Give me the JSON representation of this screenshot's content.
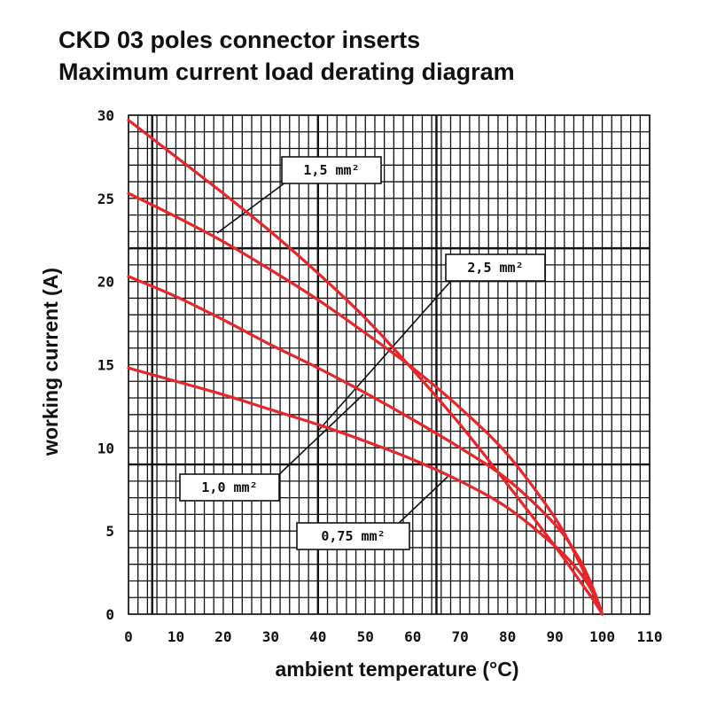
{
  "title_line1": "CKD 03 poles connector inserts",
  "title_line2": "Maximum current load derating diagram",
  "chart_data": {
    "type": "line",
    "title": "CKD 03 poles connector inserts Maximum current load derating diagram",
    "xlabel": "ambient temperature (°C)",
    "ylabel": "working current (A)",
    "xlim": [
      0,
      110
    ],
    "ylim": [
      0,
      30
    ],
    "xticks": [
      "0",
      "10",
      "20",
      "30",
      "40",
      "50",
      "60",
      "70",
      "80",
      "90",
      "100",
      "110"
    ],
    "yticks": [
      "0",
      "5",
      "10",
      "15",
      "20",
      "25",
      "30"
    ],
    "grid": true,
    "line_color": "#e8262a",
    "series": [
      {
        "name": "2,5 mm²",
        "x": [
          0,
          10,
          20,
          30,
          40,
          50,
          60,
          70,
          80,
          90,
          95,
          98,
          100
        ],
        "y": [
          29.7,
          27.5,
          25.3,
          23.0,
          20.5,
          17.8,
          14.7,
          11.4,
          7.8,
          4.1,
          2.1,
          0.9,
          0
        ]
      },
      {
        "name": "1,5 mm²",
        "x": [
          0,
          10,
          20,
          30,
          40,
          50,
          60,
          70,
          80,
          90,
          95,
          98,
          100
        ],
        "y": [
          25.3,
          23.9,
          22.4,
          20.7,
          18.9,
          16.9,
          14.8,
          12.4,
          9.6,
          5.8,
          3.2,
          1.4,
          0
        ]
      },
      {
        "name": "1,0 mm²",
        "x": [
          0,
          10,
          20,
          30,
          40,
          50,
          60,
          70,
          80,
          90,
          95,
          98,
          100
        ],
        "y": [
          20.3,
          19.1,
          17.7,
          16.2,
          14.8,
          13.3,
          11.7,
          10.0,
          8.1,
          5.4,
          3.4,
          1.6,
          0
        ]
      },
      {
        "name": "0,75 mm²",
        "x": [
          0,
          10,
          20,
          30,
          40,
          50,
          60,
          70,
          80,
          90,
          95,
          98,
          100
        ],
        "y": [
          14.8,
          14.0,
          13.2,
          12.3,
          11.4,
          10.4,
          9.3,
          8.0,
          6.4,
          4.1,
          2.6,
          1.3,
          0
        ]
      }
    ],
    "annotations": [
      "1,5 mm²",
      "2,5 mm²",
      "1,0 mm²",
      "0,75 mm²"
    ]
  }
}
